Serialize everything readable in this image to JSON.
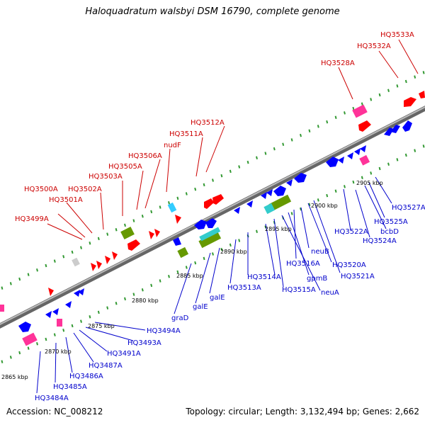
{
  "title": "Haloquadratum walsbyi DSM 16790, complete genome",
  "footer": {
    "accession": "Accession: NC_008212",
    "summary": "Topology: circular; Length: 3,132,494 bp; Genes: 2,662"
  },
  "colors": {
    "forward_label": "#cc0000",
    "reverse_label": "#0000cc",
    "forward_gene": "#ff0000",
    "reverse_gene": "#0000ff",
    "rna_gene": "#ff3399",
    "gene_cluster": "#669900",
    "cyan_gene": "#33cccc",
    "backbone": "#888888",
    "tick": "#339933"
  },
  "kbp_ticks": [
    "2865 kbp",
    "2870 kbp",
    "2875 kbp",
    "2880 kbp",
    "2885 kbp",
    "2890 kbp",
    "2895 kbp",
    "2900 kbp",
    "2905 kbp"
  ],
  "forward_labels": [
    "HQ3533A",
    "HQ3532A",
    "HQ3528A",
    "HQ3512A",
    "HQ3511A",
    "nudF",
    "HQ3506A",
    "HQ3505A",
    "HQ3503A",
    "HQ3502A",
    "HQ3500A",
    "HQ3501A",
    "HQ3499A"
  ],
  "reverse_labels": [
    "HQ3527A",
    "HQ3525A",
    "bcbD",
    "HQ3524A",
    "HQ3522A",
    "HQ3521A",
    "HQ3520A",
    "neuB",
    "HQ3516A",
    "gpmB",
    "neuA",
    "HQ3515A",
    "HQ3514A",
    "HQ3513A",
    "galE",
    "galE",
    "graD",
    "HQ3494A",
    "HQ3493A",
    "HQ3491A",
    "HQ3487A",
    "HQ3486A",
    "HQ3485A",
    "HQ3484A"
  ]
}
